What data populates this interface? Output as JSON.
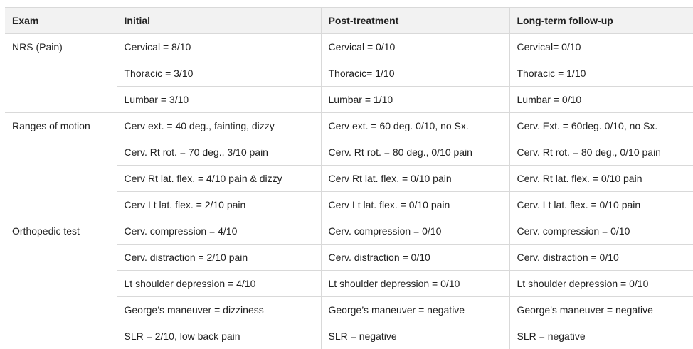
{
  "headers": [
    "Exam",
    "Initial",
    "Post-treatment",
    "Long-term follow-up"
  ],
  "rows": [
    {
      "exam": "NRS (Pain)",
      "initial": "Cervical = 8/10",
      "post": "Cervical = 0/10",
      "follow": "Cervical= 0/10"
    },
    {
      "exam": "",
      "initial": "Thoracic = 3/10",
      "post": "Thoracic= 1/10",
      "follow": "Thoracic = 1/10"
    },
    {
      "exam": "",
      "initial": "Lumbar = 3/10",
      "post": "Lumbar = 1/10",
      "follow": "Lumbar = 0/10"
    },
    {
      "exam": "Ranges of motion",
      "initial": "Cerv ext. = 40 deg., fainting, dizzy",
      "post": "Cerv ext. = 60 deg. 0/10, no Sx.",
      "follow": "Cerv. Ext. = 60deg. 0/10, no Sx."
    },
    {
      "exam": "",
      "initial": "Cerv. Rt rot. = 70 deg., 3/10 pain",
      "post": "Cerv. Rt rot. = 80 deg., 0/10 pain",
      "follow": "Cerv. Rt rot. = 80 deg., 0/10 pain"
    },
    {
      "exam": "",
      "initial": "Cerv Rt lat. flex. = 4/10 pain & dizzy",
      "post": "Cerv Rt lat. flex. = 0/10 pain",
      "follow": "Cerv. Rt lat. flex. = 0/10 pain"
    },
    {
      "exam": "",
      "initial": "Cerv Lt lat. flex. = 2/10 pain",
      "post": "Cerv Lt lat. flex. = 0/10 pain",
      "follow": "Cerv. Lt lat. flex. = 0/10 pain"
    },
    {
      "exam": "Orthopedic test",
      "initial": "Cerv. compression = 4/10",
      "post": "Cerv. compression = 0/10",
      "follow": "Cerv. compression = 0/10"
    },
    {
      "exam": "",
      "initial": "Cerv. distraction = 2/10 pain",
      "post": "Cerv. distraction = 0/10",
      "follow": "Cerv. distraction = 0/10"
    },
    {
      "exam": "",
      "initial": "Lt shoulder depression = 4/10",
      "post": "Lt shoulder depression = 0/10",
      "follow": "Lt shoulder depression = 0/10"
    },
    {
      "exam": "",
      "initial": "George’s maneuver = dizziness",
      "post": "George’s maneuver = negative",
      "follow": "George's maneuver = negative"
    },
    {
      "exam": "",
      "initial": "SLR = 2/10, low back pain",
      "post": "SLR = negative",
      "follow": "SLR = negative"
    }
  ]
}
